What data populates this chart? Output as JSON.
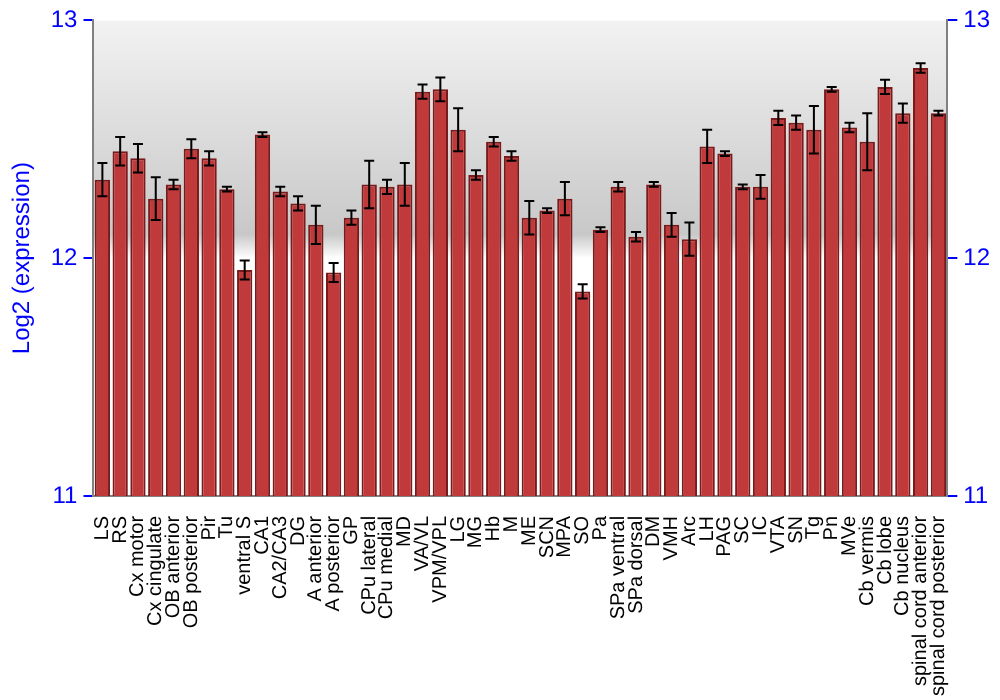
{
  "chart_data": {
    "type": "bar",
    "ylabel": "Log2 (expression)",
    "categories": [
      "LS",
      "RS",
      "Cx motor",
      "Cx cingulate",
      "OB anterior",
      "OB posterior",
      "Pir",
      "Tu",
      "ventral S",
      "CA1",
      "CA2/CA3",
      "DG",
      "A anterior",
      "A posterior",
      "GP",
      "CPu lateral",
      "CPu medial",
      "MD",
      "VA/VL",
      "VPM/VPL",
      "LG",
      "MG",
      "Hb",
      "M",
      "ME",
      "SCN",
      "MPA",
      "SO",
      "Pa",
      "SPa ventral",
      "SPa dorsal",
      "DM",
      "VMH",
      "Arc",
      "LH",
      "PAG",
      "SC",
      "IC",
      "VTA",
      "SN",
      "Tg",
      "Pn",
      "MVe",
      "Cb vermis",
      "Cb lobe",
      "Cb nucleus",
      "spinal cord anterior",
      "spinal cord posterior"
    ],
    "values": [
      12.33,
      12.45,
      12.42,
      12.25,
      12.31,
      12.46,
      12.42,
      12.29,
      11.95,
      12.52,
      12.28,
      12.23,
      12.14,
      11.94,
      12.17,
      12.31,
      12.3,
      12.31,
      12.7,
      12.71,
      12.54,
      12.35,
      12.49,
      12.43,
      12.17,
      12.2,
      12.25,
      11.86,
      12.12,
      12.3,
      12.09,
      12.31,
      12.14,
      12.08,
      12.47,
      12.44,
      12.3,
      12.3,
      12.59,
      12.57,
      12.54,
      12.71,
      12.55,
      12.49,
      12.72,
      12.61,
      12.8,
      12.61
    ],
    "errors": [
      0.07,
      0.06,
      0.06,
      0.09,
      0.02,
      0.04,
      0.03,
      0.01,
      0.04,
      0.01,
      0.02,
      0.03,
      0.08,
      0.04,
      0.03,
      0.1,
      0.03,
      0.09,
      0.03,
      0.05,
      0.09,
      0.02,
      0.02,
      0.02,
      0.07,
      0.01,
      0.07,
      0.03,
      0.01,
      0.02,
      0.02,
      0.01,
      0.05,
      0.07,
      0.07,
      0.01,
      0.01,
      0.05,
      0.03,
      0.03,
      0.1,
      0.01,
      0.02,
      0.12,
      0.03,
      0.04,
      0.02,
      0.01
    ],
    "color": "#c0393b",
    "ylim": [
      11,
      13
    ],
    "yticks": [
      11,
      12,
      13
    ],
    "y2lim": [
      11,
      13
    ],
    "y2ticks": [
      11,
      12,
      13
    ]
  }
}
